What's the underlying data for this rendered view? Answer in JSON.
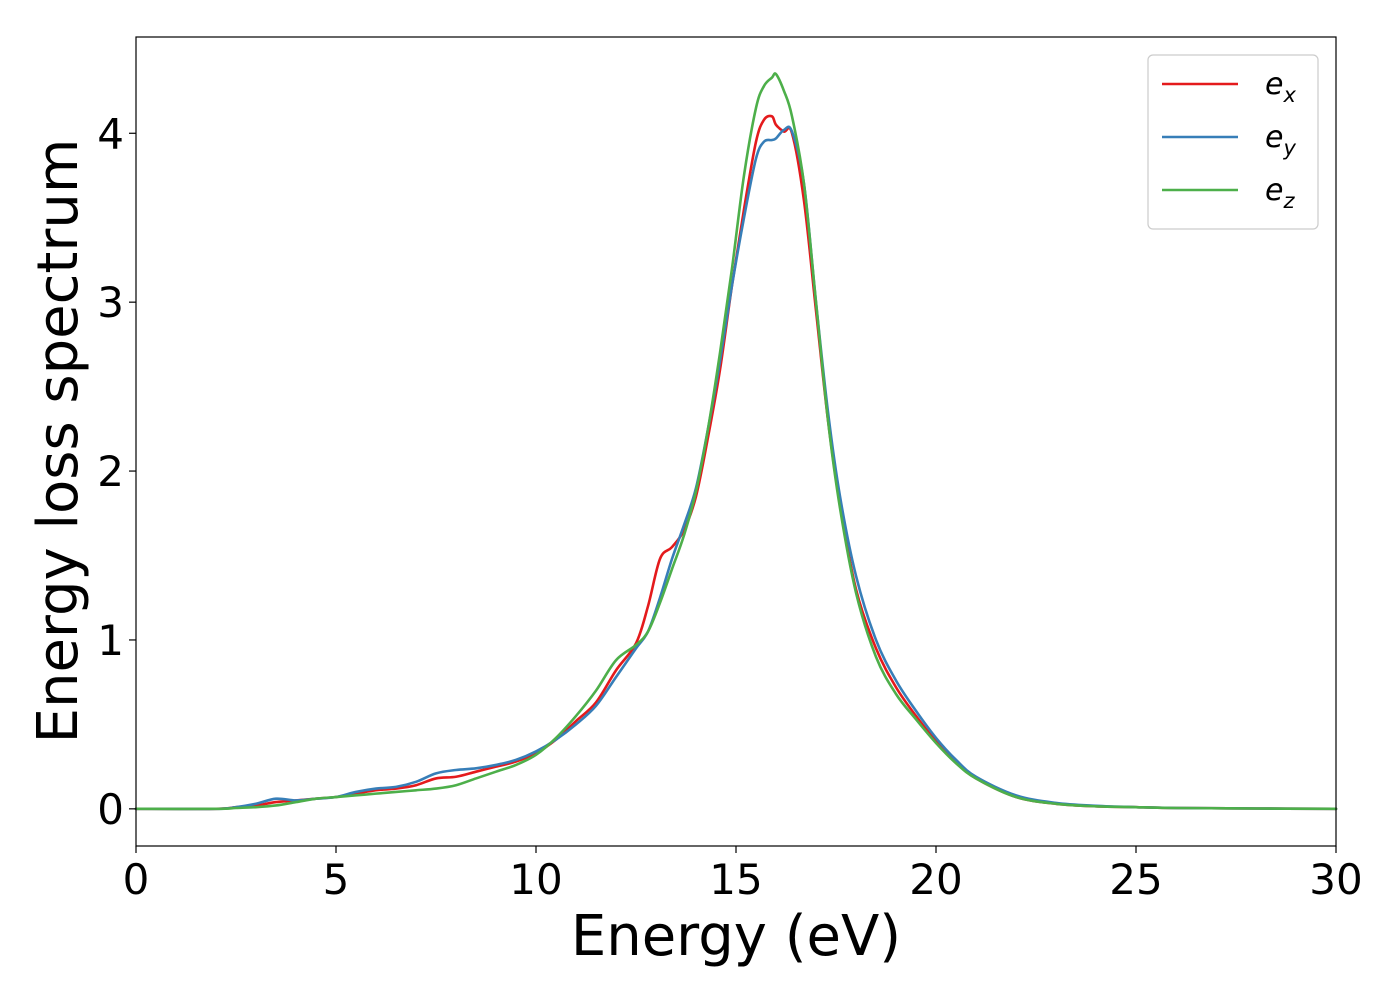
{
  "chart_data": {
    "type": "line",
    "title": "",
    "xlabel": "Energy (eV)",
    "ylabel": "Energy loss spectrum",
    "xlim": [
      0,
      30
    ],
    "ylim": [
      -0.22,
      4.57
    ],
    "xticks": [
      0,
      5,
      10,
      15,
      20,
      25,
      30
    ],
    "yticks": [
      0,
      1,
      2,
      3,
      4
    ],
    "grid": false,
    "legend_position": "top-right",
    "series": [
      {
        "name": "e",
        "name_subscript": "x",
        "color": "#e41a1c",
        "x": [
          0,
          2,
          2.5,
          3,
          3.5,
          4,
          4.5,
          5,
          5.5,
          6,
          6.5,
          7,
          7.5,
          8,
          8.5,
          9,
          9.5,
          10,
          10.5,
          11,
          11.5,
          12,
          12.5,
          12.8,
          13.1,
          13.4,
          13.7,
          14,
          14.3,
          14.6,
          14.9,
          15.2,
          15.5,
          15.7,
          15.9,
          16.0,
          16.2,
          16.4,
          16.7,
          17.0,
          17.3,
          17.6,
          18.0,
          18.5,
          19.0,
          19.5,
          20.0,
          20.5,
          21.0,
          22.0,
          23.0,
          24.0,
          25.0,
          26.0,
          28.0,
          30.0
        ],
        "values": [
          0,
          0,
          0.01,
          0.02,
          0.04,
          0.05,
          0.06,
          0.07,
          0.09,
          0.11,
          0.12,
          0.14,
          0.18,
          0.19,
          0.22,
          0.25,
          0.28,
          0.33,
          0.41,
          0.52,
          0.63,
          0.82,
          0.98,
          1.2,
          1.48,
          1.55,
          1.65,
          1.85,
          2.2,
          2.6,
          3.1,
          3.55,
          3.95,
          4.08,
          4.1,
          4.05,
          4.01,
          4.0,
          3.6,
          2.95,
          2.3,
          1.8,
          1.3,
          0.95,
          0.72,
          0.55,
          0.4,
          0.28,
          0.18,
          0.07,
          0.03,
          0.015,
          0.01,
          0.005,
          0.002,
          0
        ]
      },
      {
        "name": "e",
        "name_subscript": "y",
        "color": "#377eb8",
        "x": [
          0,
          2,
          2.5,
          3,
          3.5,
          4,
          4.5,
          5,
          5.5,
          6,
          6.5,
          7,
          7.5,
          8,
          8.5,
          9,
          9.5,
          10,
          10.5,
          11,
          11.5,
          12,
          12.5,
          12.8,
          13.1,
          13.4,
          13.7,
          14,
          14.3,
          14.6,
          14.9,
          15.2,
          15.5,
          15.7,
          15.9,
          16.0,
          16.2,
          16.4,
          16.7,
          17.0,
          17.3,
          17.6,
          18.0,
          18.5,
          19.0,
          19.5,
          20.0,
          20.5,
          21.0,
          22.0,
          23.0,
          24.0,
          25.0,
          26.0,
          28.0,
          30.0
        ],
        "values": [
          0,
          0,
          0.01,
          0.03,
          0.06,
          0.05,
          0.06,
          0.07,
          0.1,
          0.12,
          0.13,
          0.16,
          0.21,
          0.23,
          0.24,
          0.26,
          0.29,
          0.34,
          0.41,
          0.5,
          0.61,
          0.78,
          0.95,
          1.05,
          1.25,
          1.48,
          1.68,
          1.9,
          2.25,
          2.65,
          3.1,
          3.5,
          3.85,
          3.95,
          3.96,
          3.97,
          4.02,
          4.01,
          3.7,
          3.0,
          2.35,
          1.85,
          1.38,
          1.0,
          0.76,
          0.58,
          0.42,
          0.29,
          0.19,
          0.08,
          0.035,
          0.018,
          0.01,
          0.005,
          0.002,
          0
        ]
      },
      {
        "name": "e",
        "name_subscript": "z",
        "color": "#4daf4a",
        "x": [
          0,
          2,
          2.5,
          3,
          3.5,
          4,
          4.5,
          5,
          5.5,
          6,
          6.5,
          7,
          7.5,
          8,
          8.5,
          9,
          9.5,
          10,
          10.5,
          11,
          11.5,
          12,
          12.5,
          12.8,
          13.1,
          13.4,
          13.7,
          14,
          14.3,
          14.6,
          14.9,
          15.2,
          15.5,
          15.7,
          15.9,
          16.0,
          16.2,
          16.4,
          16.7,
          17.0,
          17.3,
          17.6,
          18.0,
          18.5,
          19.0,
          19.5,
          20.0,
          20.5,
          21.0,
          22.0,
          23.0,
          24.0,
          25.0,
          26.0,
          28.0,
          30.0
        ],
        "values": [
          0,
          0,
          0.005,
          0.01,
          0.02,
          0.04,
          0.06,
          0.07,
          0.08,
          0.09,
          0.1,
          0.11,
          0.12,
          0.14,
          0.18,
          0.22,
          0.26,
          0.32,
          0.42,
          0.55,
          0.7,
          0.88,
          0.97,
          1.05,
          1.22,
          1.42,
          1.62,
          1.88,
          2.25,
          2.7,
          3.2,
          3.75,
          4.15,
          4.28,
          4.33,
          4.35,
          4.25,
          4.1,
          3.7,
          3.0,
          2.3,
          1.78,
          1.28,
          0.9,
          0.68,
          0.53,
          0.39,
          0.27,
          0.18,
          0.07,
          0.03,
          0.015,
          0.01,
          0.005,
          0.002,
          0
        ]
      }
    ]
  }
}
